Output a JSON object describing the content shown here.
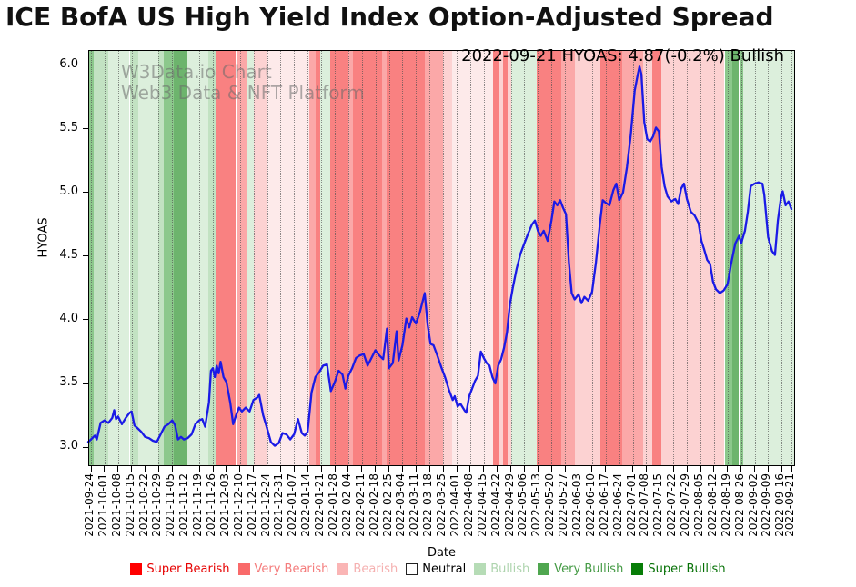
{
  "title": "ICE BofA US High Yield Index Option-Adjusted Spread",
  "annotation": "2022-09-21 HYOAS: 4.87(-0.2%) Bullish",
  "watermark": {
    "line1": "W3Data.io Chart",
    "line2": "Web3 Data & NFT Platform"
  },
  "legend": {
    "items": [
      {
        "label": "Super Bearish",
        "swatch": "#ff0000",
        "text_color": "#e60000",
        "border": false
      },
      {
        "label": "Very Bearish",
        "swatch": "#f96a6a",
        "text_color": "#f47c7c",
        "border": false
      },
      {
        "label": "Bearish",
        "swatch": "#fab5b5",
        "text_color": "#f5b0b0",
        "border": false
      },
      {
        "label": "Neutral",
        "swatch": "#ffffff",
        "text_color": "#000000",
        "border": true
      },
      {
        "label": "Bullish",
        "swatch": "#b6dcb6",
        "text_color": "#aed4ae",
        "border": false
      },
      {
        "label": "Very Bullish",
        "swatch": "#4fa64f",
        "text_color": "#449a44",
        "border": false
      },
      {
        "label": "Super Bullish",
        "swatch": "#077d07",
        "text_color": "#067106",
        "border": false
      }
    ]
  },
  "chart_data": {
    "type": "line",
    "title": "ICE BofA US High Yield Index Option-Adjusted Spread",
    "x_axis": {
      "label": "Date",
      "range_days": [
        -1.4,
        363.9
      ],
      "tick_days": [
        0,
        7,
        14,
        21,
        28,
        35,
        42,
        49,
        56,
        63,
        70,
        77,
        84,
        91,
        98,
        105,
        112,
        119,
        126,
        133,
        140,
        147,
        154,
        161,
        168,
        175,
        182,
        189,
        196,
        203,
        210,
        217,
        224,
        231,
        238,
        245,
        252,
        259,
        266,
        273,
        280,
        287,
        294,
        301,
        308,
        315,
        322,
        329,
        336,
        343,
        350,
        357,
        362
      ],
      "tick_labels": [
        "2021-09-24",
        "2021-10-01",
        "2021-10-08",
        "2021-10-15",
        "2021-10-22",
        "2021-10-29",
        "2021-11-05",
        "2021-11-12",
        "2021-11-19",
        "2021-11-26",
        "2021-12-03",
        "2021-12-10",
        "2021-12-17",
        "2021-12-24",
        "2021-12-31",
        "2022-01-07",
        "2022-01-14",
        "2022-01-21",
        "2022-01-28",
        "2022-02-04",
        "2022-02-11",
        "2022-02-18",
        "2022-02-25",
        "2022-03-04",
        "2022-03-11",
        "2022-03-18",
        "2022-03-25",
        "2022-04-01",
        "2022-04-08",
        "2022-04-15",
        "2022-04-22",
        "2022-04-29",
        "2022-05-06",
        "2022-05-13",
        "2022-05-20",
        "2022-05-27",
        "2022-06-03",
        "2022-06-10",
        "2022-06-17",
        "2022-06-24",
        "2022-07-01",
        "2022-07-08",
        "2022-07-15",
        "2022-07-22",
        "2022-07-29",
        "2022-08-05",
        "2022-08-12",
        "2022-08-19",
        "2022-08-26",
        "2022-09-02",
        "2022-09-09",
        "2022-09-16",
        "2022-09-21"
      ]
    },
    "y_axis": {
      "label": "HYOAS",
      "range": [
        2.85,
        6.12
      ],
      "ticks": [
        3.0,
        3.5,
        4.0,
        4.5,
        5.0,
        5.5,
        6.0
      ]
    },
    "band_colors": {
      "g1": "#dcefdc",
      "g2": "#c2e2c2",
      "g3": "#8cc88c",
      "g4": "#6db46d",
      "r1": "#fdeaea",
      "r2": "#fcd2d2",
      "r3": "#fba8a8",
      "r4": "#f98181"
    },
    "sentiment_bands": [
      [
        -1.4,
        1.5,
        "g3"
      ],
      [
        1.5,
        9,
        "g2"
      ],
      [
        9,
        20,
        "g1"
      ],
      [
        20,
        24.5,
        "g2"
      ],
      [
        24.5,
        35,
        "g1"
      ],
      [
        35,
        37.5,
        "g2"
      ],
      [
        37.5,
        43,
        "g3"
      ],
      [
        43,
        50,
        "g4"
      ],
      [
        50,
        60.5,
        "g1"
      ],
      [
        60.5,
        64.5,
        "g2"
      ],
      [
        64.5,
        75,
        "r4"
      ],
      [
        75,
        81,
        "r3"
      ],
      [
        81,
        84,
        "g1"
      ],
      [
        84,
        91,
        "r2"
      ],
      [
        91,
        113,
        "r1"
      ],
      [
        113,
        116,
        "r3"
      ],
      [
        116,
        118.5,
        "r4"
      ],
      [
        118.5,
        123.5,
        "g1"
      ],
      [
        123.5,
        133,
        "r4"
      ],
      [
        133,
        135.5,
        "r3"
      ],
      [
        135.5,
        150.5,
        "r4"
      ],
      [
        150.5,
        153,
        "r3"
      ],
      [
        153,
        172.5,
        "r4"
      ],
      [
        172.5,
        182,
        "r3"
      ],
      [
        182,
        186.5,
        "r2"
      ],
      [
        186.5,
        208,
        "r1"
      ],
      [
        208,
        211,
        "r4"
      ],
      [
        211,
        213,
        "r2"
      ],
      [
        213,
        215.5,
        "r4"
      ],
      [
        215.5,
        217,
        "r2"
      ],
      [
        217,
        230.5,
        "g1"
      ],
      [
        230.5,
        243,
        "r4"
      ],
      [
        243,
        250,
        "r3"
      ],
      [
        250,
        263.5,
        "r2"
      ],
      [
        263.5,
        274.5,
        "r4"
      ],
      [
        274.5,
        285.5,
        "r3"
      ],
      [
        285.5,
        290,
        "r2"
      ],
      [
        290,
        295,
        "r4"
      ],
      [
        295,
        327.5,
        "r2"
      ],
      [
        327.5,
        331.5,
        "g3"
      ],
      [
        331.5,
        335,
        "g4"
      ],
      [
        335,
        337,
        "g3"
      ],
      [
        337,
        364,
        "g1"
      ]
    ],
    "series": [
      {
        "name": "HYOAS",
        "color": "#1a1ae6",
        "points": [
          [
            -1.4,
            3.04
          ],
          [
            0,
            3.06
          ],
          [
            2,
            3.09
          ],
          [
            3,
            3.06
          ],
          [
            5,
            3.19
          ],
          [
            7,
            3.21
          ],
          [
            9,
            3.19
          ],
          [
            11,
            3.23
          ],
          [
            12,
            3.29
          ],
          [
            13,
            3.22
          ],
          [
            14,
            3.24
          ],
          [
            16,
            3.18
          ],
          [
            18,
            3.23
          ],
          [
            20,
            3.27
          ],
          [
            21,
            3.28
          ],
          [
            22.5,
            3.17
          ],
          [
            24,
            3.15
          ],
          [
            26,
            3.12
          ],
          [
            28,
            3.08
          ],
          [
            30,
            3.07
          ],
          [
            32,
            3.05
          ],
          [
            34,
            3.04
          ],
          [
            36,
            3.1
          ],
          [
            38,
            3.16
          ],
          [
            40,
            3.18
          ],
          [
            42,
            3.21
          ],
          [
            43.5,
            3.17
          ],
          [
            45,
            3.06
          ],
          [
            46.5,
            3.08
          ],
          [
            48,
            3.06
          ],
          [
            50,
            3.07
          ],
          [
            52,
            3.1
          ],
          [
            54,
            3.18
          ],
          [
            56,
            3.21
          ],
          [
            57.5,
            3.22
          ],
          [
            59,
            3.16
          ],
          [
            61,
            3.35
          ],
          [
            62,
            3.6
          ],
          [
            63,
            3.62
          ],
          [
            64,
            3.55
          ],
          [
            65,
            3.64
          ],
          [
            66,
            3.58
          ],
          [
            67,
            3.67
          ],
          [
            68.5,
            3.55
          ],
          [
            70,
            3.51
          ],
          [
            72,
            3.35
          ],
          [
            73.5,
            3.18
          ],
          [
            75,
            3.25
          ],
          [
            76.5,
            3.31
          ],
          [
            78,
            3.28
          ],
          [
            80,
            3.31
          ],
          [
            82,
            3.28
          ],
          [
            84,
            3.37
          ],
          [
            86,
            3.39
          ],
          [
            87,
            3.41
          ],
          [
            89,
            3.25
          ],
          [
            91,
            3.15
          ],
          [
            93,
            3.04
          ],
          [
            95,
            3.01
          ],
          [
            97,
            3.03
          ],
          [
            99,
            3.11
          ],
          [
            101,
            3.1
          ],
          [
            103,
            3.06
          ],
          [
            105,
            3.1
          ],
          [
            107,
            3.22
          ],
          [
            109,
            3.11
          ],
          [
            110.5,
            3.09
          ],
          [
            112,
            3.12
          ],
          [
            114,
            3.43
          ],
          [
            116,
            3.55
          ],
          [
            118,
            3.59
          ],
          [
            120,
            3.64
          ],
          [
            122,
            3.65
          ],
          [
            124,
            3.44
          ],
          [
            126,
            3.51
          ],
          [
            128,
            3.6
          ],
          [
            130,
            3.57
          ],
          [
            131.5,
            3.46
          ],
          [
            133,
            3.56
          ],
          [
            135,
            3.62
          ],
          [
            137,
            3.7
          ],
          [
            139,
            3.72
          ],
          [
            141,
            3.73
          ],
          [
            143,
            3.64
          ],
          [
            145,
            3.7
          ],
          [
            147,
            3.76
          ],
          [
            149,
            3.72
          ],
          [
            151,
            3.69
          ],
          [
            153,
            3.93
          ],
          [
            154,
            3.62
          ],
          [
            156,
            3.66
          ],
          [
            158,
            3.91
          ],
          [
            159,
            3.68
          ],
          [
            161,
            3.8
          ],
          [
            163,
            4.01
          ],
          [
            164.5,
            3.94
          ],
          [
            166,
            4.02
          ],
          [
            168,
            3.97
          ],
          [
            170,
            4.06
          ],
          [
            172.5,
            4.21
          ],
          [
            174,
            3.96
          ],
          [
            175.5,
            3.81
          ],
          [
            177,
            3.8
          ],
          [
            179,
            3.72
          ],
          [
            181,
            3.63
          ],
          [
            183,
            3.55
          ],
          [
            185,
            3.45
          ],
          [
            187,
            3.37
          ],
          [
            188,
            3.4
          ],
          [
            189.5,
            3.32
          ],
          [
            191,
            3.34
          ],
          [
            193,
            3.29
          ],
          [
            194,
            3.27
          ],
          [
            195.5,
            3.4
          ],
          [
            197,
            3.46
          ],
          [
            198.5,
            3.52
          ],
          [
            200,
            3.56
          ],
          [
            201.5,
            3.75
          ],
          [
            203,
            3.7
          ],
          [
            204.5,
            3.66
          ],
          [
            206,
            3.64
          ],
          [
            207.5,
            3.55
          ],
          [
            209,
            3.5
          ],
          [
            210.5,
            3.64
          ],
          [
            212,
            3.69
          ],
          [
            213.5,
            3.78
          ],
          [
            215,
            3.9
          ],
          [
            216.5,
            4.12
          ],
          [
            218,
            4.25
          ],
          [
            220,
            4.4
          ],
          [
            222,
            4.52
          ],
          [
            224,
            4.6
          ],
          [
            226,
            4.68
          ],
          [
            228,
            4.75
          ],
          [
            229.5,
            4.78
          ],
          [
            231,
            4.7
          ],
          [
            232.5,
            4.66
          ],
          [
            234,
            4.7
          ],
          [
            236,
            4.62
          ],
          [
            238,
            4.78
          ],
          [
            239.5,
            4.93
          ],
          [
            241,
            4.9
          ],
          [
            242.5,
            4.94
          ],
          [
            244,
            4.88
          ],
          [
            245.5,
            4.83
          ],
          [
            247,
            4.45
          ],
          [
            248.5,
            4.21
          ],
          [
            250,
            4.16
          ],
          [
            252,
            4.2
          ],
          [
            253.5,
            4.13
          ],
          [
            255,
            4.18
          ],
          [
            257,
            4.15
          ],
          [
            259,
            4.22
          ],
          [
            261,
            4.45
          ],
          [
            263,
            4.75
          ],
          [
            264.5,
            4.94
          ],
          [
            266,
            4.92
          ],
          [
            268,
            4.9
          ],
          [
            270,
            5.02
          ],
          [
            271.5,
            5.07
          ],
          [
            273,
            4.94
          ],
          [
            275,
            5.0
          ],
          [
            277,
            5.2
          ],
          [
            279,
            5.45
          ],
          [
            281,
            5.8
          ],
          [
            282.5,
            5.92
          ],
          [
            283.5,
            5.99
          ],
          [
            284.5,
            5.93
          ],
          [
            286,
            5.55
          ],
          [
            287.5,
            5.42
          ],
          [
            289,
            5.4
          ],
          [
            290.5,
            5.44
          ],
          [
            292,
            5.51
          ],
          [
            293.5,
            5.48
          ],
          [
            295,
            5.2
          ],
          [
            296.5,
            5.05
          ],
          [
            298,
            4.97
          ],
          [
            300,
            4.93
          ],
          [
            302,
            4.95
          ],
          [
            303.5,
            4.91
          ],
          [
            305,
            5.03
          ],
          [
            306.5,
            5.07
          ],
          [
            308,
            4.95
          ],
          [
            310,
            4.85
          ],
          [
            312,
            4.82
          ],
          [
            314,
            4.76
          ],
          [
            315.5,
            4.62
          ],
          [
            317,
            4.55
          ],
          [
            318.5,
            4.47
          ],
          [
            320,
            4.44
          ],
          [
            321.5,
            4.3
          ],
          [
            323,
            4.24
          ],
          [
            325,
            4.21
          ],
          [
            327,
            4.23
          ],
          [
            329,
            4.28
          ],
          [
            331,
            4.45
          ],
          [
            333,
            4.6
          ],
          [
            335,
            4.66
          ],
          [
            336,
            4.6
          ],
          [
            338,
            4.7
          ],
          [
            339.5,
            4.85
          ],
          [
            341,
            5.05
          ],
          [
            343,
            5.07
          ],
          [
            345,
            5.08
          ],
          [
            347,
            5.07
          ],
          [
            348,
            4.98
          ],
          [
            350,
            4.65
          ],
          [
            352,
            4.54
          ],
          [
            353.5,
            4.51
          ],
          [
            355,
            4.78
          ],
          [
            356.5,
            4.95
          ],
          [
            357.5,
            5.01
          ],
          [
            359,
            4.9
          ],
          [
            360.5,
            4.93
          ],
          [
            362,
            4.87
          ]
        ]
      }
    ],
    "legend_position": "bottom",
    "grid": "vertical-dotted-weekly"
  }
}
